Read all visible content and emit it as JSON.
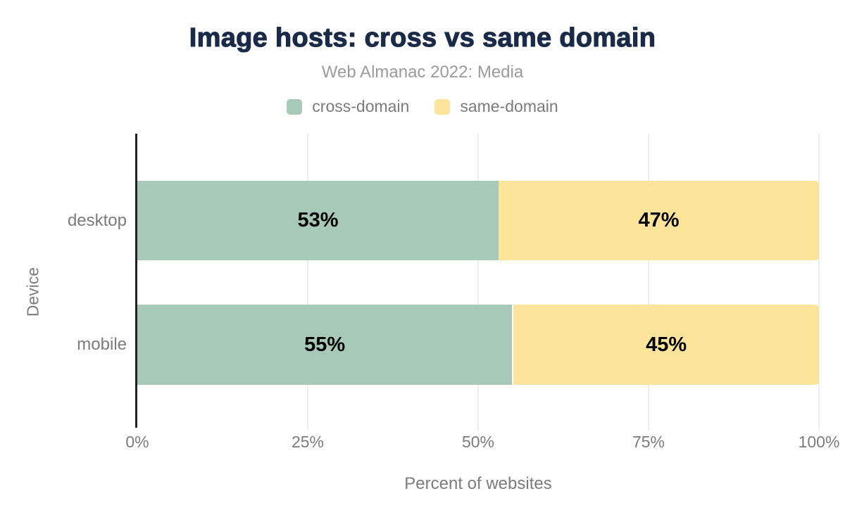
{
  "chart_data": {
    "type": "bar",
    "orientation": "horizontal",
    "stacked": true,
    "title": "Image hosts: cross vs same domain",
    "subtitle": "Web Almanac 2022: Media",
    "xlabel": "Percent of websites",
    "ylabel": "Device",
    "categories": [
      "desktop",
      "mobile"
    ],
    "series": [
      {
        "name": "cross-domain",
        "color": "#a6c9b8",
        "values": [
          53,
          55
        ]
      },
      {
        "name": "same-domain",
        "color": "#fde49b",
        "values": [
          47,
          45
        ]
      }
    ],
    "value_labels": [
      [
        "53%",
        "47%"
      ],
      [
        "55%",
        "45%"
      ]
    ],
    "x_ticks": [
      "0%",
      "25%",
      "50%",
      "75%",
      "100%"
    ],
    "xlim": [
      0,
      100
    ],
    "grid": true,
    "legend_position": "top",
    "colors": {
      "background": "#ffffff",
      "title": "#1a2b49",
      "subtitle": "#9b9b9b",
      "axis_text": "#7b7b7b",
      "axis_line": "#212121",
      "gridline": "#ededed",
      "bar_label": "#000000"
    }
  }
}
